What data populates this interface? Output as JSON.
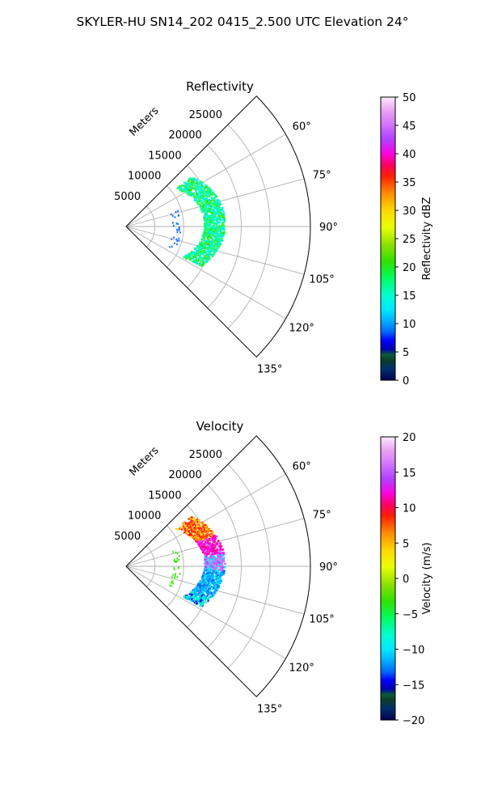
{
  "figure": {
    "title": "SKYLER-HU  SN14_202  0415_2.500 UTC Elevation 24°"
  },
  "chart_data": [
    {
      "type": "polar-sector",
      "title": "Reflectivity",
      "range_label": "Meters",
      "range_ticks": [
        5000,
        10000,
        15000,
        20000,
        25000
      ],
      "range_tick_labels": [
        "5000",
        "10000",
        "15000",
        "20000",
        "25000"
      ],
      "range_max": 32000,
      "azimuth_range": [
        45,
        135
      ],
      "azimuth_ticks": [
        60,
        75,
        90,
        105,
        120,
        135
      ],
      "azimuth_tick_labels": [
        "60°",
        "75°",
        "90°",
        "105°",
        "120°",
        "135°"
      ],
      "grid": true,
      "colorbar": {
        "label": "Reflectivity dBZ",
        "min": 0,
        "max": 50,
        "ticks": [
          0,
          5,
          10,
          15,
          20,
          25,
          30,
          35,
          40,
          45,
          50
        ],
        "tick_labels": [
          "0",
          "5",
          "10",
          "15",
          "20",
          "25",
          "30",
          "35",
          "40",
          "45",
          "50"
        ]
      }
    },
    {
      "type": "polar-sector",
      "title": "Velocity",
      "range_label": "Meters",
      "range_ticks": [
        5000,
        10000,
        15000,
        20000,
        25000
      ],
      "range_tick_labels": [
        "5000",
        "10000",
        "15000",
        "20000",
        "25000"
      ],
      "range_max": 32000,
      "azimuth_range": [
        45,
        135
      ],
      "azimuth_ticks": [
        60,
        75,
        90,
        105,
        120,
        135
      ],
      "azimuth_tick_labels": [
        "60°",
        "75°",
        "90°",
        "105°",
        "120°",
        "135°"
      ],
      "grid": true,
      "colorbar": {
        "label": "Velocity (m/s)",
        "min": -20,
        "max": 20,
        "ticks": [
          -20,
          -15,
          -10,
          -5,
          0,
          5,
          10,
          15,
          20
        ],
        "tick_labels": [
          "−20",
          "−15",
          "−10",
          "−5",
          "0",
          "5",
          "10",
          "15",
          "20"
        ]
      }
    }
  ],
  "colors": {
    "axes": "#000000",
    "grid": "#b0b0b0"
  }
}
